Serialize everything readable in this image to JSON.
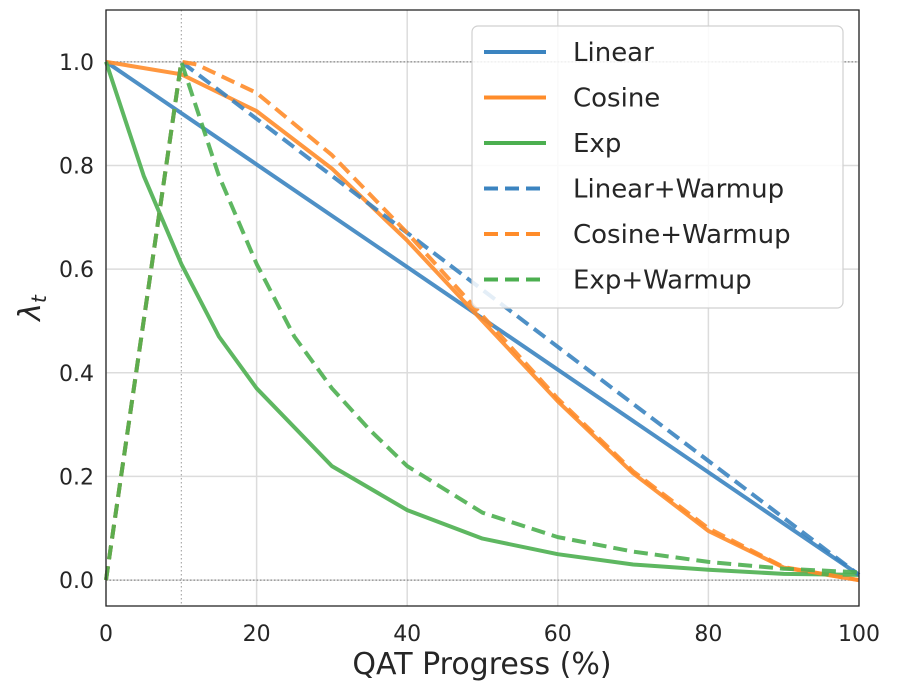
{
  "chart_data": {
    "type": "line",
    "title": "",
    "xlabel": "QAT Progress (%)",
    "ylabel_main": "λ",
    "ylabel_sub": "t",
    "xlim": [
      0,
      100
    ],
    "ylim": [
      -0.05,
      1.1
    ],
    "xticks": [
      0,
      20,
      40,
      60,
      80,
      100
    ],
    "xtick_labels": [
      "0",
      "20",
      "40",
      "60",
      "80",
      "100"
    ],
    "yticks": [
      0.0,
      0.2,
      0.4,
      0.6,
      0.8,
      1.0
    ],
    "ytick_labels": [
      "0.0",
      "0.2",
      "0.4",
      "0.6",
      "0.8",
      "1.0"
    ],
    "grid": true,
    "reference_lines": {
      "vertical_x": [
        10
      ],
      "horizontal_y": [
        0.0,
        1.0
      ]
    },
    "legend_position": "top-right",
    "series": [
      {
        "name": "Linear",
        "color": "#3b84c0",
        "dashed": false,
        "x": [
          0,
          100
        ],
        "y": [
          1.0,
          0.01
        ]
      },
      {
        "name": "Cosine",
        "color": "#ff8c2a",
        "dashed": false,
        "x": [
          0,
          10,
          20,
          30,
          40,
          50,
          60,
          70,
          80,
          90,
          100
        ],
        "y": [
          1.0,
          0.976,
          0.905,
          0.794,
          0.655,
          0.5,
          0.345,
          0.206,
          0.095,
          0.024,
          0.0
        ]
      },
      {
        "name": "Exp",
        "color": "#4caf50",
        "dashed": false,
        "x": [
          0,
          5,
          10,
          15,
          20,
          30,
          40,
          50,
          60,
          70,
          80,
          90,
          100
        ],
        "y": [
          1.0,
          0.78,
          0.61,
          0.47,
          0.37,
          0.22,
          0.135,
          0.08,
          0.05,
          0.03,
          0.02,
          0.012,
          0.01
        ]
      },
      {
        "name": "Linear+Warmup",
        "color": "#3b84c0",
        "dashed": true,
        "x": [
          0,
          10,
          100
        ],
        "y": [
          0.0,
          1.0,
          0.01
        ]
      },
      {
        "name": "Cosine+Warmup",
        "color": "#ff8c2a",
        "dashed": true,
        "x": [
          0,
          10,
          12,
          20,
          30,
          40,
          50,
          60,
          70,
          80,
          90,
          100
        ],
        "y": [
          0.0,
          1.0,
          0.995,
          0.94,
          0.82,
          0.67,
          0.51,
          0.35,
          0.21,
          0.1,
          0.025,
          0.0
        ]
      },
      {
        "name": "Exp+Warmup",
        "color": "#4caf50",
        "dashed": true,
        "x": [
          0,
          10,
          15,
          20,
          25,
          30,
          35,
          40,
          50,
          60,
          70,
          80,
          90,
          100
        ],
        "y": [
          0.0,
          1.0,
          0.78,
          0.61,
          0.47,
          0.37,
          0.29,
          0.22,
          0.13,
          0.083,
          0.055,
          0.035,
          0.022,
          0.015
        ]
      }
    ]
  }
}
